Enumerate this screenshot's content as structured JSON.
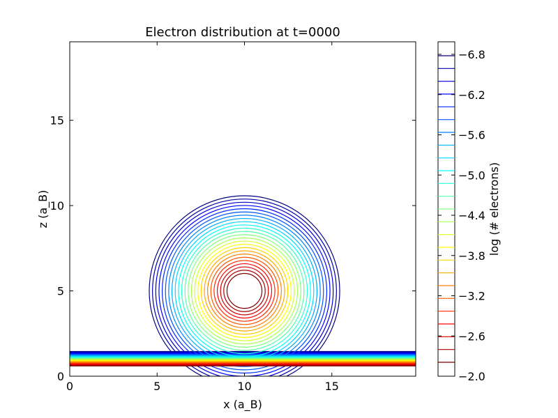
{
  "chart_data": {
    "type": "contour",
    "title": "Electron distribution at t=0000",
    "xlabel": "x (a_B)",
    "ylabel": "z (a_B)",
    "xlim": [
      0,
      19.8
    ],
    "ylim": [
      0,
      19.6
    ],
    "x_ticks": [
      0,
      5,
      10,
      15
    ],
    "y_ticks": [
      0,
      5,
      10,
      15
    ],
    "circle_center": [
      10,
      5
    ],
    "circle_radius_range": [
      1.0,
      5.45
    ],
    "slab_z_range": [
      0.6,
      1.45
    ],
    "colorbar": {
      "label": "log (# electrons)",
      "range": [
        -7.0,
        -2.0
      ],
      "tick_labels": [
        "−6.8",
        "−6.2",
        "−5.6",
        "−5.0",
        "−4.4",
        "−3.8",
        "−3.2",
        "−2.6",
        "−2.0"
      ],
      "colormap": "jet",
      "num_levels": 25
    }
  }
}
